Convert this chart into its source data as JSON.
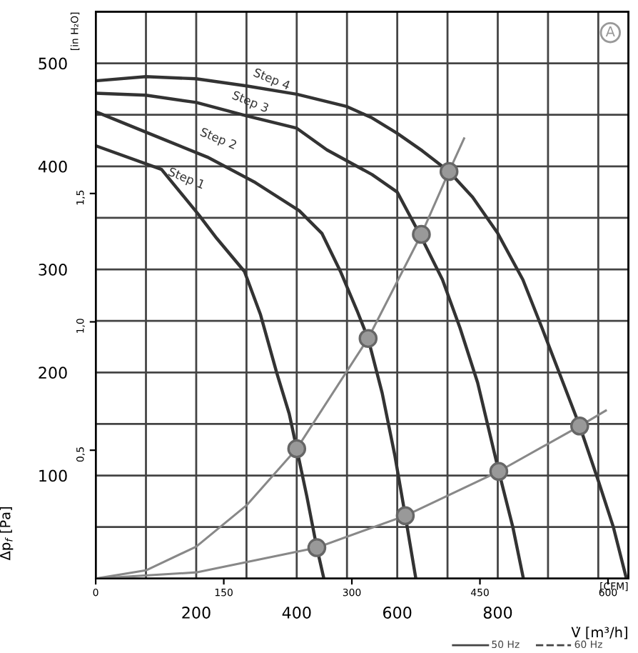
{
  "chart_data": {
    "type": "line",
    "xlabel": "V̇ [m³/h]",
    "ylabel": "Δp$_{f}$ [Pa]",
    "y2label": "[in H₂O]",
    "x2label": "[CFM]",
    "xlim": [
      0,
      1060
    ],
    "ylim": [
      0,
      550
    ],
    "xticks": [
      {
        "value": 0,
        "label": null
      },
      {
        "value": 100,
        "label": null
      },
      200,
      {
        "value": 300,
        "label": null
      },
      400,
      {
        "value": 500,
        "label": null
      },
      600,
      {
        "value": 700,
        "label": null
      },
      800,
      {
        "value": 900,
        "label": null
      },
      {
        "value": 1000,
        "label": null
      }
    ],
    "yticks": [
      {
        "value": 0,
        "label": null
      },
      {
        "value": 50,
        "label": null
      },
      100,
      {
        "value": 150,
        "label": null
      },
      200,
      {
        "value": 250,
        "label": null
      },
      300,
      {
        "value": 350,
        "label": null
      },
      400,
      {
        "value": 450,
        "label": null
      },
      500
    ],
    "y2lim": [
      0,
      2.208
    ],
    "y2ticks": [
      {
        "value": 0.5,
        "label": "0,5"
      },
      {
        "value": 1.0,
        "label": "1,0"
      },
      {
        "value": 1.5,
        "label": "1,5"
      }
    ],
    "x2lim": [
      0,
      623.9
    ],
    "x2ticks": [
      0,
      150,
      300,
      450,
      600
    ],
    "grid": true,
    "line_style": "solid",
    "series": [
      {
        "color": "#333333",
        "x": [
          0,
          131,
          205,
          241,
          296,
          328,
          360,
          385,
          400,
          420,
          440,
          454
        ],
        "values": [
          420,
          397,
          353,
          330,
          298,
          256,
          200,
          160,
          126,
          80,
          30,
          0
        ]
      },
      {
        "color": "#333333",
        "x": [
          0,
          131,
          222,
          315,
          405,
          450,
          487,
          520,
          542,
          570,
          595,
          616,
          637
        ],
        "values": [
          453,
          427,
          409,
          385,
          357,
          335,
          298,
          260,
          233,
          180,
          120,
          61,
          0
        ]
      },
      {
        "color": "#333333",
        "x": [
          0,
          100,
          200,
          300,
          400,
          460,
          550,
          600,
          646,
          690,
          725,
          760,
          802,
          830,
          851
        ],
        "values": [
          471,
          469,
          462,
          449,
          437,
          416,
          392,
          375,
          333,
          290,
          243,
          190,
          104,
          50,
          0
        ]
      },
      {
        "color": "#333333",
        "x": [
          0,
          100,
          200,
          300,
          400,
          500,
          550,
          600,
          650,
          703,
          750,
          800,
          850,
          889,
          930,
          963,
          1000,
          1030,
          1056
        ],
        "values": [
          483,
          487,
          485,
          478,
          470,
          458,
          447,
          432,
          415,
          395,
          370,
          335,
          290,
          242,
          190,
          148,
          95,
          50,
          0
        ]
      },
      {
        "color": "#888888",
        "x": [
          0,
          100,
          200,
          300,
          400,
          542,
          648,
          703,
          733
        ],
        "values": [
          0,
          8,
          31,
          71,
          126,
          233,
          334,
          395,
          427
        ]
      },
      {
        "color": "#888888",
        "x": [
          0,
          200,
          440,
          616,
          802,
          963,
          1015
        ],
        "values": [
          0,
          6,
          30,
          61,
          104,
          148,
          163
        ]
      },
      {
        "type": "scatter",
        "marker": "circle",
        "color": "#999999",
        "x": [
          400,
          542,
          648,
          703,
          440,
          616,
          802,
          963
        ],
        "values": [
          126,
          233,
          334,
          395,
          30,
          61,
          104,
          148
        ]
      }
    ],
    "annotations": [
      "Step 1",
      "Step 2",
      "Step 3",
      "Step 4",
      "A",
      "50 Hz",
      "60 Hz"
    ]
  }
}
